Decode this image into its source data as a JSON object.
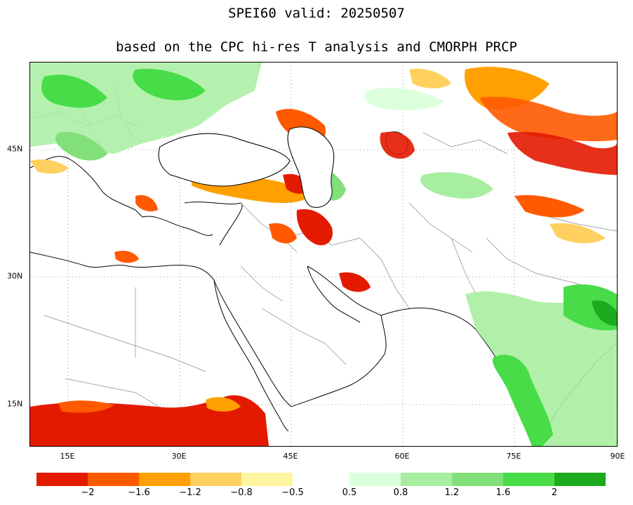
{
  "title": "SPEI60  valid: 20250507",
  "subtitle": "based on the CPC hi-res T analysis and CMORPH PRCP",
  "lon_labels": [
    "15E",
    "30E",
    "45E",
    "60E",
    "75E",
    "90E"
  ],
  "lat_labels": [
    "45N",
    "30N",
    "15N"
  ],
  "colorbar": {
    "dry_colors": [
      "#e31a00",
      "#ff5a00",
      "#ffa000",
      "#ffd060",
      "#fff4a0"
    ],
    "wet_colors": [
      "#dcffdc",
      "#a8eea0",
      "#82e07a",
      "#48dc48",
      "#1eaa1e"
    ],
    "dry_labels": [
      "−2",
      "−1.6",
      "−1.2",
      "−0.8",
      "−0.5"
    ],
    "wet_labels": [
      "0.5",
      "0.8",
      "1.2",
      "1.6",
      "2"
    ]
  }
}
